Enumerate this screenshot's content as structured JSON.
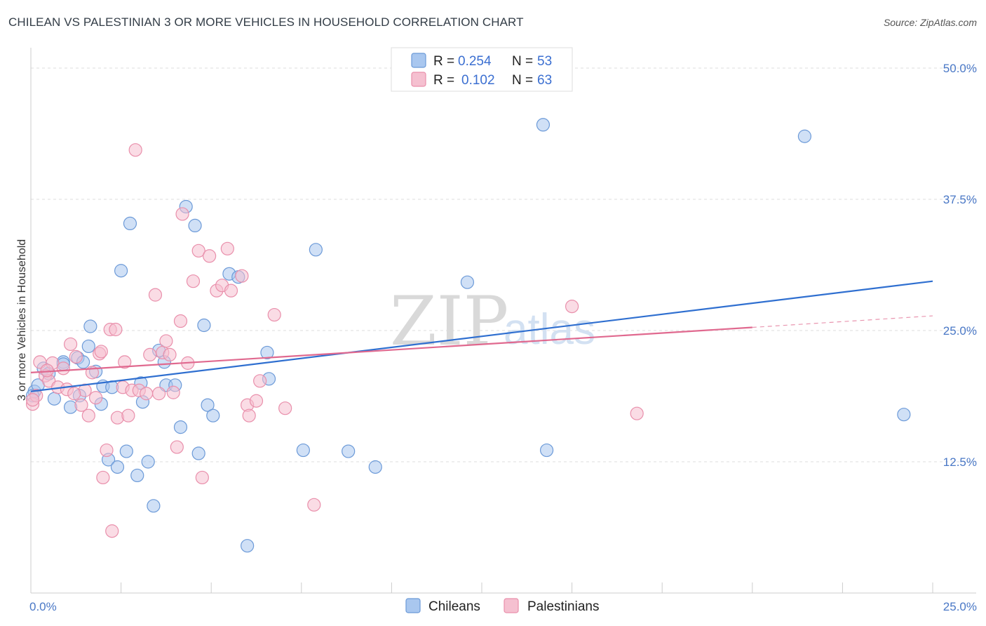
{
  "title": "CHILEAN VS PALESTINIAN 3 OR MORE VEHICLES IN HOUSEHOLD CORRELATION CHART",
  "source": "Source: ZipAtlas.com",
  "watermark": {
    "zip": "ZIP",
    "atlas": "atlas"
  },
  "colors": {
    "chileans_fill": "#a9c7ef",
    "chileans_stroke": "#6c9ad8",
    "chileans_line": "#2f6fd0",
    "palestinians_fill": "#f5c0d0",
    "palestinians_stroke": "#e98fab",
    "palestinians_line": "#e0698f",
    "grid": "#dddddd",
    "tick_text": "#4a78c6"
  },
  "legend": {
    "rows": [
      {
        "r_label": "R =",
        "r_value": "0.254",
        "n_label": "N =",
        "n_value": "53"
      },
      {
        "r_label": "R =",
        "r_value": "0.102",
        "n_label": "N =",
        "n_value": "63"
      }
    ]
  },
  "bottom_legend": {
    "chileans": "Chileans",
    "palestinians": "Palestinians"
  },
  "chart_data": {
    "type": "scatter",
    "title": "CHILEAN VS PALESTINIAN 3 OR MORE VEHICLES IN HOUSEHOLD CORRELATION CHART",
    "xlabel": "",
    "ylabel": "3 or more Vehicles in Household",
    "xlim": [
      0,
      25
    ],
    "ylim": [
      0,
      50
    ],
    "x_tick_labels": [
      "0.0%",
      "25.0%"
    ],
    "y_ticks": [
      12.5,
      25.0,
      37.5,
      50.0
    ],
    "y_tick_labels": [
      "12.5%",
      "25.0%",
      "37.5%",
      "50.0%"
    ],
    "grid": true,
    "legend_position": "top-center",
    "series": [
      {
        "name": "Chileans",
        "R": 0.254,
        "N": 53,
        "trend": {
          "x": [
            0,
            25
          ],
          "y": [
            19.2,
            29.7
          ]
        },
        "points": [
          [
            0.1,
            19.2
          ],
          [
            0.2,
            19.8
          ],
          [
            0.35,
            21.4
          ],
          [
            0.5,
            20.9
          ],
          [
            0.65,
            18.5
          ],
          [
            0.9,
            22.0
          ],
          [
            1.1,
            17.7
          ],
          [
            1.3,
            22.4
          ],
          [
            1.35,
            18.8
          ],
          [
            1.45,
            22.0
          ],
          [
            1.6,
            23.5
          ],
          [
            1.65,
            25.4
          ],
          [
            1.8,
            21.1
          ],
          [
            1.95,
            18.0
          ],
          [
            2.0,
            19.7
          ],
          [
            2.15,
            12.7
          ],
          [
            2.25,
            19.6
          ],
          [
            2.4,
            12.0
          ],
          [
            2.5,
            30.7
          ],
          [
            2.65,
            13.5
          ],
          [
            2.75,
            35.2
          ],
          [
            2.95,
            11.2
          ],
          [
            3.05,
            20.0
          ],
          [
            3.1,
            18.2
          ],
          [
            3.25,
            12.5
          ],
          [
            3.4,
            8.3
          ],
          [
            3.55,
            23.1
          ],
          [
            3.7,
            22.0
          ],
          [
            3.75,
            19.8
          ],
          [
            4.0,
            19.8
          ],
          [
            4.15,
            15.8
          ],
          [
            4.3,
            36.8
          ],
          [
            4.55,
            35.0
          ],
          [
            4.65,
            13.3
          ],
          [
            4.8,
            25.5
          ],
          [
            4.9,
            17.9
          ],
          [
            5.05,
            16.9
          ],
          [
            5.5,
            30.4
          ],
          [
            5.75,
            30.1
          ],
          [
            6.0,
            4.5
          ],
          [
            6.55,
            22.9
          ],
          [
            6.6,
            20.4
          ],
          [
            7.55,
            13.6
          ],
          [
            7.9,
            32.7
          ],
          [
            8.8,
            13.5
          ],
          [
            9.55,
            12.0
          ],
          [
            12.1,
            29.6
          ],
          [
            14.2,
            44.6
          ],
          [
            14.3,
            13.6
          ],
          [
            21.45,
            43.5
          ],
          [
            24.2,
            17.0
          ],
          [
            0.05,
            18.8
          ],
          [
            0.9,
            21.8
          ]
        ]
      },
      {
        "name": "Palestinians",
        "R": 0.102,
        "N": 63,
        "trend": {
          "x": [
            0,
            20.0
          ],
          "y": [
            21.0,
            25.3
          ]
        },
        "trend_extension": {
          "x": [
            20.0,
            25
          ],
          "y": [
            25.3,
            26.4
          ]
        },
        "points": [
          [
            0.05,
            18.0
          ],
          [
            0.15,
            18.8
          ],
          [
            0.25,
            22.0
          ],
          [
            0.4,
            20.7
          ],
          [
            0.5,
            20.2
          ],
          [
            0.6,
            21.9
          ],
          [
            0.75,
            19.6
          ],
          [
            0.9,
            21.4
          ],
          [
            1.0,
            19.4
          ],
          [
            1.1,
            23.7
          ],
          [
            1.25,
            22.5
          ],
          [
            1.4,
            17.9
          ],
          [
            1.5,
            19.3
          ],
          [
            1.6,
            16.9
          ],
          [
            1.7,
            21.0
          ],
          [
            1.8,
            18.6
          ],
          [
            1.9,
            22.8
          ],
          [
            1.95,
            23.0
          ],
          [
            2.0,
            11.0
          ],
          [
            2.1,
            13.6
          ],
          [
            2.2,
            25.1
          ],
          [
            2.25,
            5.9
          ],
          [
            2.35,
            25.1
          ],
          [
            2.4,
            16.7
          ],
          [
            2.55,
            19.6
          ],
          [
            2.6,
            22.0
          ],
          [
            2.7,
            16.9
          ],
          [
            2.8,
            19.3
          ],
          [
            2.9,
            42.2
          ],
          [
            3.0,
            19.3
          ],
          [
            3.2,
            19.0
          ],
          [
            3.3,
            22.7
          ],
          [
            3.45,
            28.4
          ],
          [
            3.55,
            19.0
          ],
          [
            3.65,
            22.9
          ],
          [
            3.75,
            24.0
          ],
          [
            3.85,
            22.7
          ],
          [
            3.95,
            19.1
          ],
          [
            4.05,
            13.9
          ],
          [
            4.15,
            25.9
          ],
          [
            4.2,
            36.1
          ],
          [
            4.35,
            21.9
          ],
          [
            4.5,
            29.7
          ],
          [
            4.65,
            32.6
          ],
          [
            4.75,
            11.0
          ],
          [
            4.95,
            32.1
          ],
          [
            5.15,
            28.8
          ],
          [
            5.3,
            29.3
          ],
          [
            5.45,
            32.8
          ],
          [
            5.55,
            28.8
          ],
          [
            5.85,
            30.2
          ],
          [
            6.0,
            17.9
          ],
          [
            6.05,
            16.9
          ],
          [
            6.25,
            18.3
          ],
          [
            6.35,
            20.2
          ],
          [
            6.75,
            26.5
          ],
          [
            7.05,
            17.6
          ],
          [
            7.85,
            8.4
          ],
          [
            15.0,
            27.3
          ],
          [
            16.8,
            17.1
          ],
          [
            0.05,
            18.4
          ],
          [
            0.45,
            21.2
          ],
          [
            1.2,
            19.0
          ]
        ]
      }
    ]
  }
}
